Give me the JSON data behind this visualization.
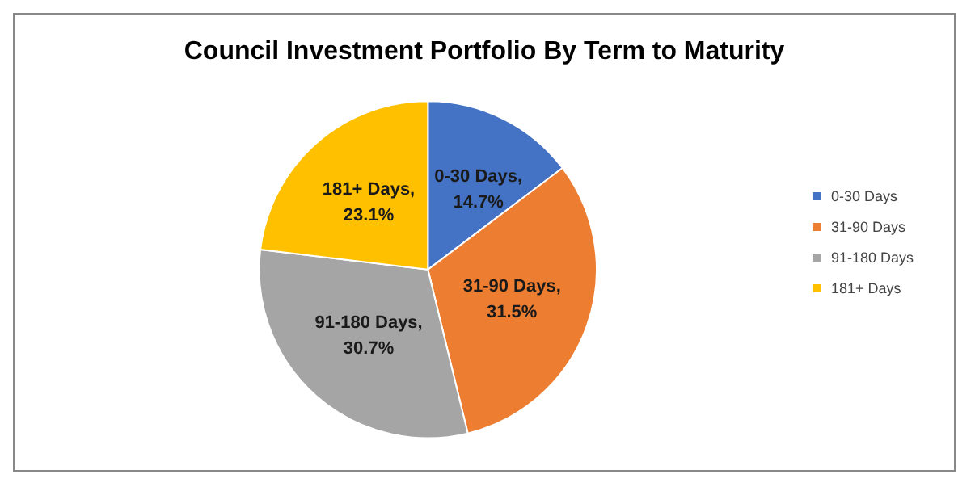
{
  "chart_data": {
    "type": "pie",
    "title": "Council Investment Portfolio By Term to Maturity",
    "categories": [
      "0-30 Days",
      "31-90 Days",
      "91-180 Days",
      "181+ Days"
    ],
    "values": [
      14.7,
      31.5,
      30.7,
      23.1
    ],
    "colors": [
      "#4472c4",
      "#ed7d31",
      "#a5a5a5",
      "#ffc000"
    ],
    "value_labels": [
      "0-30 Days, 14.7%",
      "31-90 Days, 31.5%",
      "91-180 Days, 30.7%",
      "181+ Days, 23.1%"
    ],
    "legend": "right"
  }
}
